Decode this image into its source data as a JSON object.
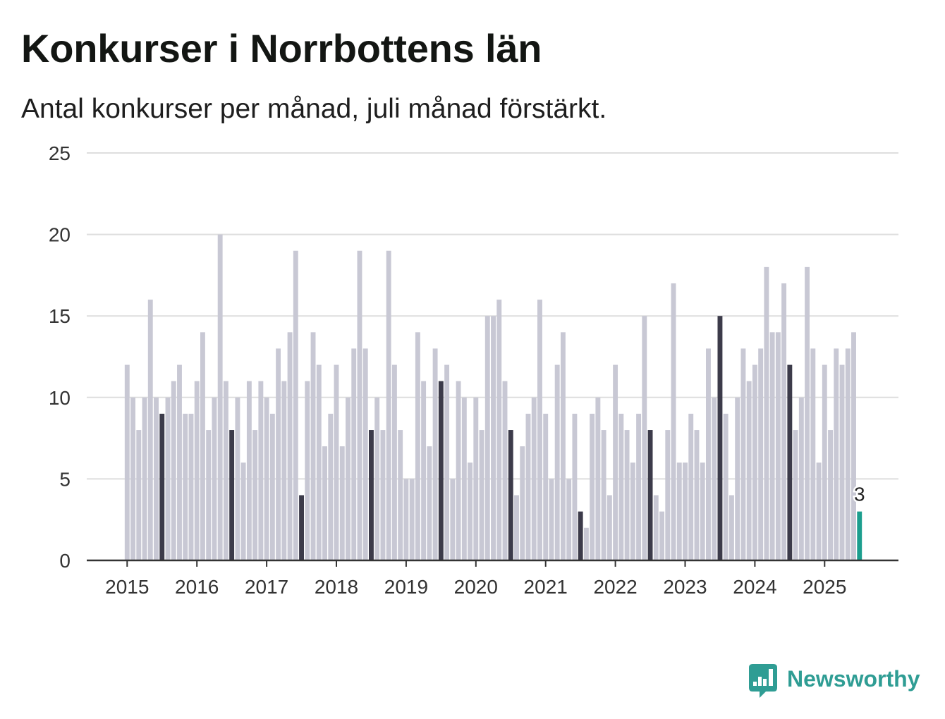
{
  "chart_data": {
    "type": "bar",
    "title": "Konkurser i Norrbottens län",
    "subtitle": "Antal konkurser per månad, juli månad förstärkt.",
    "xlabel": "",
    "ylabel": "",
    "ylim": [
      0,
      25
    ],
    "yticks": [
      0,
      5,
      10,
      15,
      20,
      25
    ],
    "xticks": [
      "2015",
      "2016",
      "2017",
      "2018",
      "2019",
      "2020",
      "2021",
      "2022",
      "2023",
      "2024",
      "2025"
    ],
    "grid": true,
    "x": [
      "2015-01",
      "2015-02",
      "2015-03",
      "2015-04",
      "2015-05",
      "2015-06",
      "2015-07",
      "2015-08",
      "2015-09",
      "2015-10",
      "2015-11",
      "2015-12",
      "2016-01",
      "2016-02",
      "2016-03",
      "2016-04",
      "2016-05",
      "2016-06",
      "2016-07",
      "2016-08",
      "2016-09",
      "2016-10",
      "2016-11",
      "2016-12",
      "2017-01",
      "2017-02",
      "2017-03",
      "2017-04",
      "2017-05",
      "2017-06",
      "2017-07",
      "2017-08",
      "2017-09",
      "2017-10",
      "2017-11",
      "2017-12",
      "2018-01",
      "2018-02",
      "2018-03",
      "2018-04",
      "2018-05",
      "2018-06",
      "2018-07",
      "2018-08",
      "2018-09",
      "2018-10",
      "2018-11",
      "2018-12",
      "2019-01",
      "2019-02",
      "2019-03",
      "2019-04",
      "2019-05",
      "2019-06",
      "2019-07",
      "2019-08",
      "2019-09",
      "2019-10",
      "2019-11",
      "2019-12",
      "2020-01",
      "2020-02",
      "2020-03",
      "2020-04",
      "2020-05",
      "2020-06",
      "2020-07",
      "2020-08",
      "2020-09",
      "2020-10",
      "2020-11",
      "2020-12",
      "2021-01",
      "2021-02",
      "2021-03",
      "2021-04",
      "2021-05",
      "2021-06",
      "2021-07",
      "2021-08",
      "2021-09",
      "2021-10",
      "2021-11",
      "2021-12",
      "2022-01",
      "2022-02",
      "2022-03",
      "2022-04",
      "2022-05",
      "2022-06",
      "2022-07",
      "2022-08",
      "2022-09",
      "2022-10",
      "2022-11",
      "2022-12",
      "2023-01",
      "2023-02",
      "2023-03",
      "2023-04",
      "2023-05",
      "2023-06",
      "2023-07",
      "2023-08",
      "2023-09",
      "2023-10",
      "2023-11",
      "2023-12",
      "2024-01",
      "2024-02",
      "2024-03",
      "2024-04",
      "2024-05",
      "2024-06",
      "2024-07",
      "2024-08",
      "2024-09",
      "2024-10",
      "2024-11",
      "2024-12",
      "2025-01",
      "2025-02",
      "2025-03",
      "2025-04",
      "2025-05",
      "2025-06",
      "2025-07"
    ],
    "values": [
      12,
      10,
      8,
      10,
      16,
      10,
      9,
      10,
      11,
      12,
      9,
      9,
      11,
      14,
      8,
      10,
      20,
      11,
      8,
      10,
      6,
      11,
      8,
      11,
      10,
      9,
      13,
      11,
      14,
      19,
      4,
      11,
      14,
      12,
      7,
      9,
      12,
      7,
      10,
      13,
      19,
      13,
      8,
      10,
      8,
      19,
      12,
      8,
      5,
      5,
      14,
      11,
      7,
      13,
      11,
      12,
      5,
      11,
      10,
      6,
      10,
      8,
      15,
      15,
      16,
      11,
      8,
      4,
      7,
      9,
      10,
      16,
      9,
      5,
      12,
      14,
      5,
      9,
      3,
      2,
      9,
      10,
      8,
      4,
      12,
      9,
      8,
      6,
      9,
      15,
      8,
      4,
      3,
      8,
      17,
      6,
      6,
      9,
      8,
      6,
      13,
      10,
      15,
      9,
      4,
      10,
      13,
      11,
      12,
      13,
      18,
      14,
      14,
      17,
      12,
      8,
      10,
      18,
      13,
      6,
      12,
      8,
      13,
      12,
      13,
      14,
      3
    ],
    "annotations": [
      {
        "x": "2025-07",
        "text": "3"
      }
    ],
    "colors": {
      "bars": "#c8c8d4",
      "july": "#3c3b4a",
      "latest": "#1c9e8e",
      "grid": "#dedede",
      "axis": "#333333"
    }
  },
  "brand": {
    "name": "Newsworthy",
    "icon": "newsworthy-logo-icon",
    "color": "#2f9d94"
  }
}
